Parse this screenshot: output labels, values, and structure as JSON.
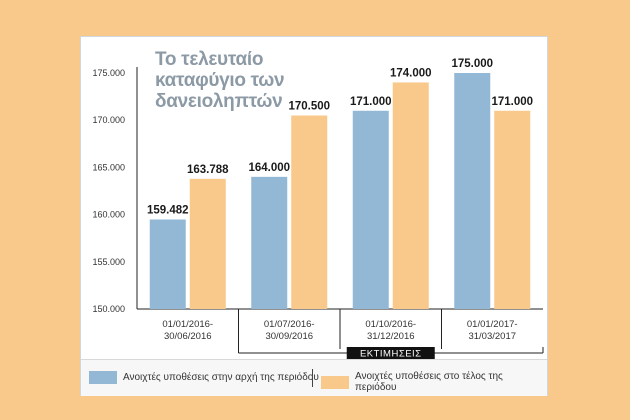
{
  "colors": {
    "start": "#93b8d6",
    "end": "#f8c98a",
    "background": "#f8c98a"
  },
  "chart_data": {
    "type": "bar",
    "title_lines": [
      "Το τελευταίο",
      "καταφύγιο των",
      "δανειοληπτών"
    ],
    "categories": [
      [
        "01/01/2016-",
        "30/06/2016"
      ],
      [
        "01/07/2016-",
        "30/09/2016"
      ],
      [
        "01/10/2016-",
        "31/12/2016"
      ],
      [
        "01/01/2017-",
        "31/03/2017"
      ]
    ],
    "series": [
      {
        "name": "Ανοιχτές υποθέσεις στην αρχή της περιόδου",
        "values": [
          159482,
          164000,
          171000,
          175000
        ],
        "labels": [
          "159.482",
          "164.000",
          "171.000",
          "175.000"
        ],
        "color": "#93b8d6"
      },
      {
        "name": "Ανοιχτές υποθέσεις στο τέλος της περιόδου",
        "values": [
          163788,
          170500,
          174000,
          171000
        ],
        "labels": [
          "163.788",
          "170.500",
          "174.000",
          "171.000"
        ],
        "color": "#f8c98a"
      }
    ],
    "ylim": [
      150000,
      175000
    ],
    "yticks": [
      150000,
      155000,
      160000,
      165000,
      170000,
      175000
    ],
    "ytick_labels": [
      "150.000",
      "155.000",
      "160.000",
      "165.000",
      "170.000",
      "175.000"
    ],
    "grid": false,
    "legend_position": "bottom",
    "estimate_label": "ΕΚΤΙΜΗΣΕΙΣ"
  }
}
